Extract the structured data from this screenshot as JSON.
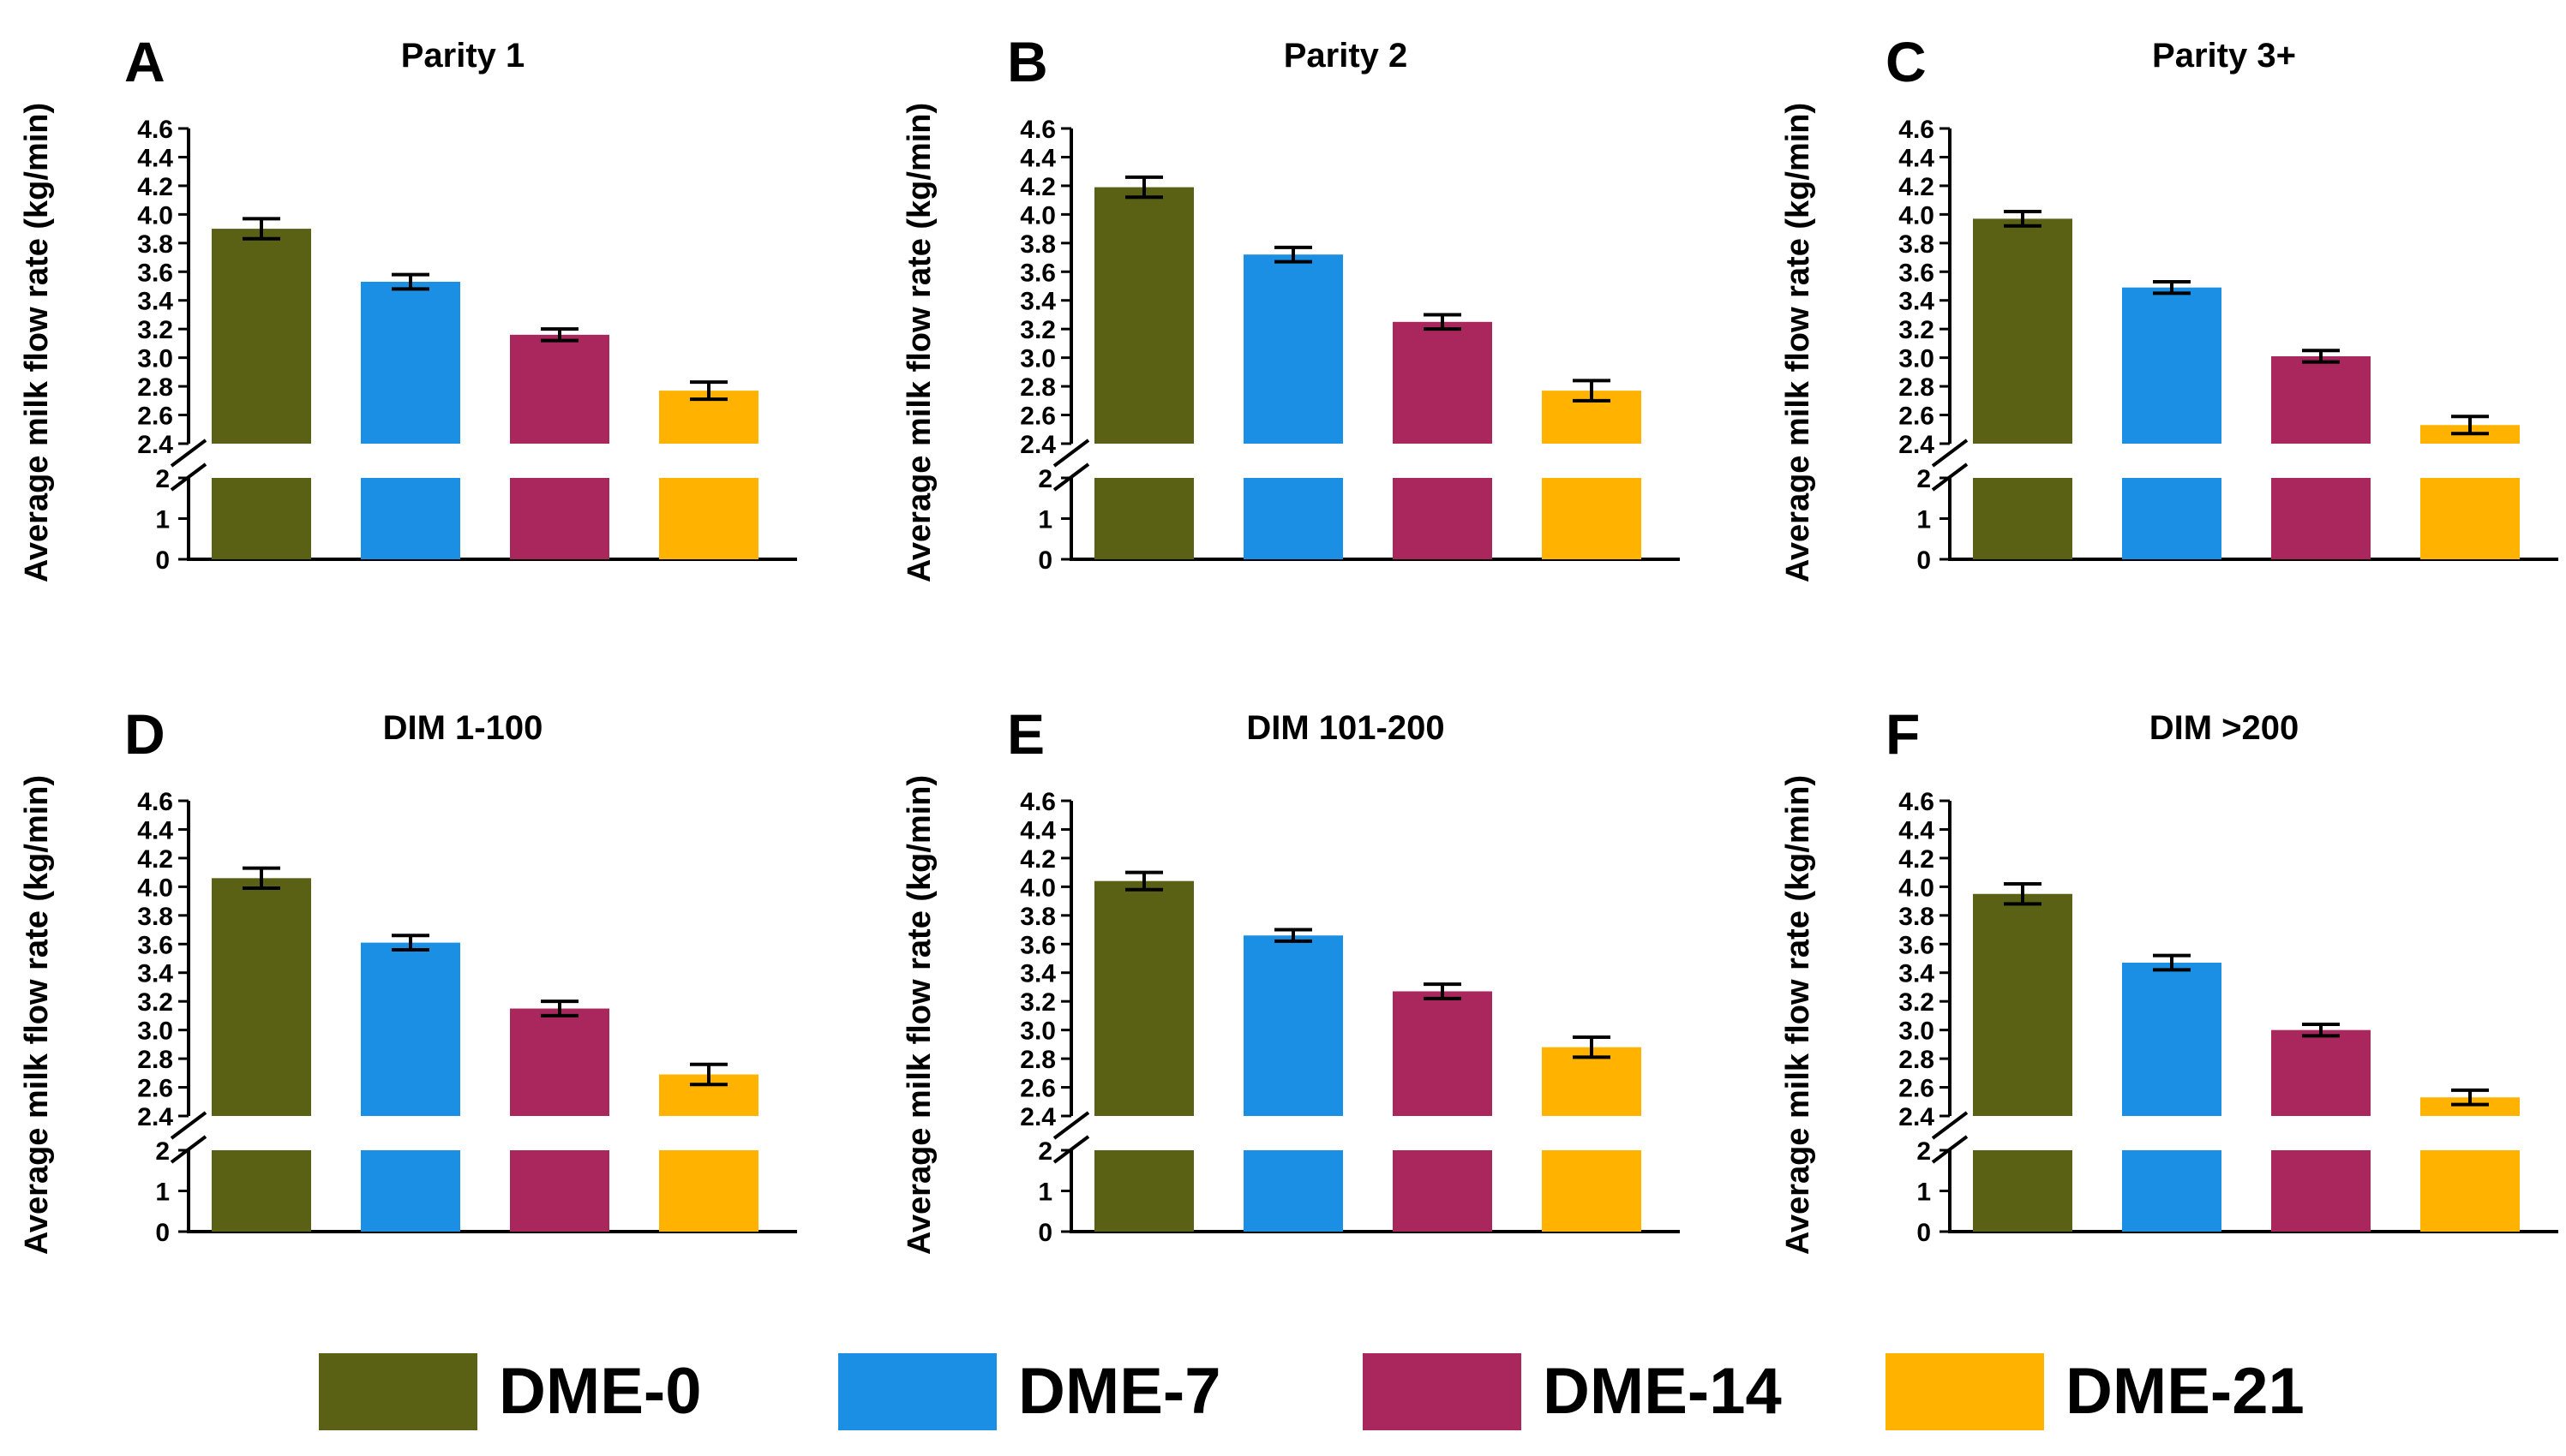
{
  "colors": {
    "DME-0": "#5a6014",
    "DME-7": "#1a8fe3",
    "DME-14": "#a9275d",
    "DME-21": "#ffb300"
  },
  "legend": [
    "DME-0",
    "DME-7",
    "DME-14",
    "DME-21"
  ],
  "ylabel": "Average milk flow rate (kg/min)",
  "chart_data": [
    {
      "type": "bar",
      "panel": "A",
      "title": "Parity 1",
      "categories": [
        "DME-0",
        "DME-7",
        "DME-14",
        "DME-21"
      ],
      "values": [
        3.9,
        3.53,
        3.16,
        2.77
      ],
      "errors": [
        0.07,
        0.05,
        0.04,
        0.06
      ],
      "ylabel": "Average milk flow rate (kg/min)",
      "axis_break": [
        2,
        2.4
      ],
      "lower_ticks": [
        "0",
        "1",
        "2"
      ],
      "upper_ticks": [
        "2.4",
        "2.6",
        "2.8",
        "3.0",
        "3.2",
        "3.4",
        "3.6",
        "3.8",
        "4.0",
        "4.2",
        "4.4",
        "4.6"
      ]
    },
    {
      "type": "bar",
      "panel": "B",
      "title": "Parity 2",
      "categories": [
        "DME-0",
        "DME-7",
        "DME-14",
        "DME-21"
      ],
      "values": [
        4.19,
        3.72,
        3.25,
        2.77
      ],
      "errors": [
        0.07,
        0.05,
        0.05,
        0.07
      ],
      "ylabel": "Average milk flow rate (kg/min)",
      "axis_break": [
        2,
        2.4
      ],
      "lower_ticks": [
        "0",
        "1",
        "2"
      ],
      "upper_ticks": [
        "2.4",
        "2.6",
        "2.8",
        "3.0",
        "3.2",
        "3.4",
        "3.6",
        "3.8",
        "4.0",
        "4.2",
        "4.4",
        "4.6"
      ]
    },
    {
      "type": "bar",
      "panel": "C",
      "title": "Parity 3+",
      "categories": [
        "DME-0",
        "DME-7",
        "DME-14",
        "DME-21"
      ],
      "values": [
        3.97,
        3.49,
        3.01,
        2.53
      ],
      "errors": [
        0.05,
        0.04,
        0.04,
        0.06
      ],
      "ylabel": "Average milk flow rate (kg/min)",
      "axis_break": [
        2,
        2.4
      ],
      "lower_ticks": [
        "0",
        "1",
        "2"
      ],
      "upper_ticks": [
        "2.4",
        "2.6",
        "2.8",
        "3.0",
        "3.2",
        "3.4",
        "3.6",
        "3.8",
        "4.0",
        "4.2",
        "4.4",
        "4.6"
      ]
    },
    {
      "type": "bar",
      "panel": "D",
      "title": "DIM 1-100",
      "categories": [
        "DME-0",
        "DME-7",
        "DME-14",
        "DME-21"
      ],
      "values": [
        4.06,
        3.61,
        3.15,
        2.69
      ],
      "errors": [
        0.07,
        0.05,
        0.05,
        0.07
      ],
      "ylabel": "Average milk flow rate (kg/min)",
      "axis_break": [
        2,
        2.4
      ],
      "lower_ticks": [
        "0",
        "1",
        "2"
      ],
      "upper_ticks": [
        "2.4",
        "2.6",
        "2.8",
        "3.0",
        "3.2",
        "3.4",
        "3.6",
        "3.8",
        "4.0",
        "4.2",
        "4.4",
        "4.6"
      ]
    },
    {
      "type": "bar",
      "panel": "E",
      "title": "DIM 101-200",
      "categories": [
        "DME-0",
        "DME-7",
        "DME-14",
        "DME-21"
      ],
      "values": [
        4.04,
        3.66,
        3.27,
        2.88
      ],
      "errors": [
        0.06,
        0.04,
        0.05,
        0.07
      ],
      "ylabel": "Average milk flow rate (kg/min)",
      "axis_break": [
        2,
        2.4
      ],
      "lower_ticks": [
        "0",
        "1",
        "2"
      ],
      "upper_ticks": [
        "2.4",
        "2.6",
        "2.8",
        "3.0",
        "3.2",
        "3.4",
        "3.6",
        "3.8",
        "4.0",
        "4.2",
        "4.4",
        "4.6"
      ]
    },
    {
      "type": "bar",
      "panel": "F",
      "title": "DIM >200",
      "categories": [
        "DME-0",
        "DME-7",
        "DME-14",
        "DME-21"
      ],
      "values": [
        3.95,
        3.47,
        3.0,
        2.53
      ],
      "errors": [
        0.07,
        0.05,
        0.04,
        0.05
      ],
      "ylabel": "Average milk flow rate (kg/min)",
      "axis_break": [
        2,
        2.4
      ],
      "lower_ticks": [
        "0",
        "1",
        "2"
      ],
      "upper_ticks": [
        "2.4",
        "2.6",
        "2.8",
        "3.0",
        "3.2",
        "3.4",
        "3.6",
        "3.8",
        "4.0",
        "4.2",
        "4.4",
        "4.6"
      ]
    }
  ]
}
